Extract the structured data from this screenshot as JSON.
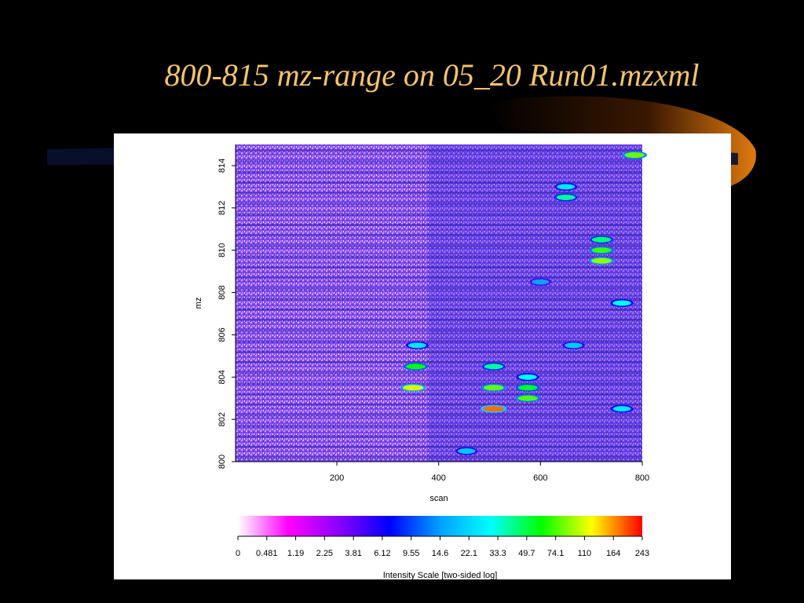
{
  "slide": {
    "title": "800-815 mz-range on 05_20 Run01.mzxml"
  },
  "chart_data": {
    "type": "heatmap",
    "title": "",
    "xlabel": "scan",
    "ylabel": "mz",
    "xlim": [
      1,
      800
    ],
    "ylim": [
      800,
      815
    ],
    "x_ticks": [
      200,
      400,
      600,
      800
    ],
    "y_ticks": [
      800,
      802,
      804,
      806,
      808,
      810,
      812,
      814
    ],
    "colorbar": {
      "label": "Intensity Scale [two-sided log]",
      "ticks": [
        "0",
        "0.481",
        "1.19",
        "2.25",
        "3.81",
        "6.12",
        "9.55",
        "14.6",
        "22.1",
        "33.3",
        "49.7",
        "74.1",
        "110",
        "164",
        "243"
      ],
      "colors": [
        "#ffffff",
        "#ff00ff",
        "#8a00ff",
        "#0000ff",
        "#00a0ff",
        "#00ffff",
        "#00ff00",
        "#ffff00",
        "#ff0000"
      ]
    },
    "peaks": [
      {
        "scan": 350,
        "mz": 803.5,
        "intensity": 110
      },
      {
        "scan": 355,
        "mz": 804.5,
        "intensity": 60
      },
      {
        "scan": 358,
        "mz": 805.5,
        "intensity": 25
      },
      {
        "scan": 508,
        "mz": 802.5,
        "intensity": 180
      },
      {
        "scan": 508,
        "mz": 803.5,
        "intensity": 80
      },
      {
        "scan": 508,
        "mz": 804.5,
        "intensity": 40
      },
      {
        "scan": 575,
        "mz": 803.0,
        "intensity": 75
      },
      {
        "scan": 575,
        "mz": 803.5,
        "intensity": 55
      },
      {
        "scan": 575,
        "mz": 804.0,
        "intensity": 30
      },
      {
        "scan": 650,
        "mz": 812.5,
        "intensity": 40
      },
      {
        "scan": 650,
        "mz": 813.0,
        "intensity": 25
      },
      {
        "scan": 720,
        "mz": 809.5,
        "intensity": 90
      },
      {
        "scan": 720,
        "mz": 810.0,
        "intensity": 70
      },
      {
        "scan": 720,
        "mz": 810.5,
        "intensity": 45
      },
      {
        "scan": 760,
        "mz": 807.5,
        "intensity": 30
      },
      {
        "scan": 760,
        "mz": 802.5,
        "intensity": 25
      },
      {
        "scan": 785,
        "mz": 814.5,
        "intensity": 80
      },
      {
        "scan": 455,
        "mz": 800.5,
        "intensity": 20
      },
      {
        "scan": 600,
        "mz": 808.5,
        "intensity": 15
      },
      {
        "scan": 665,
        "mz": 805.5,
        "intensity": 20
      }
    ]
  }
}
